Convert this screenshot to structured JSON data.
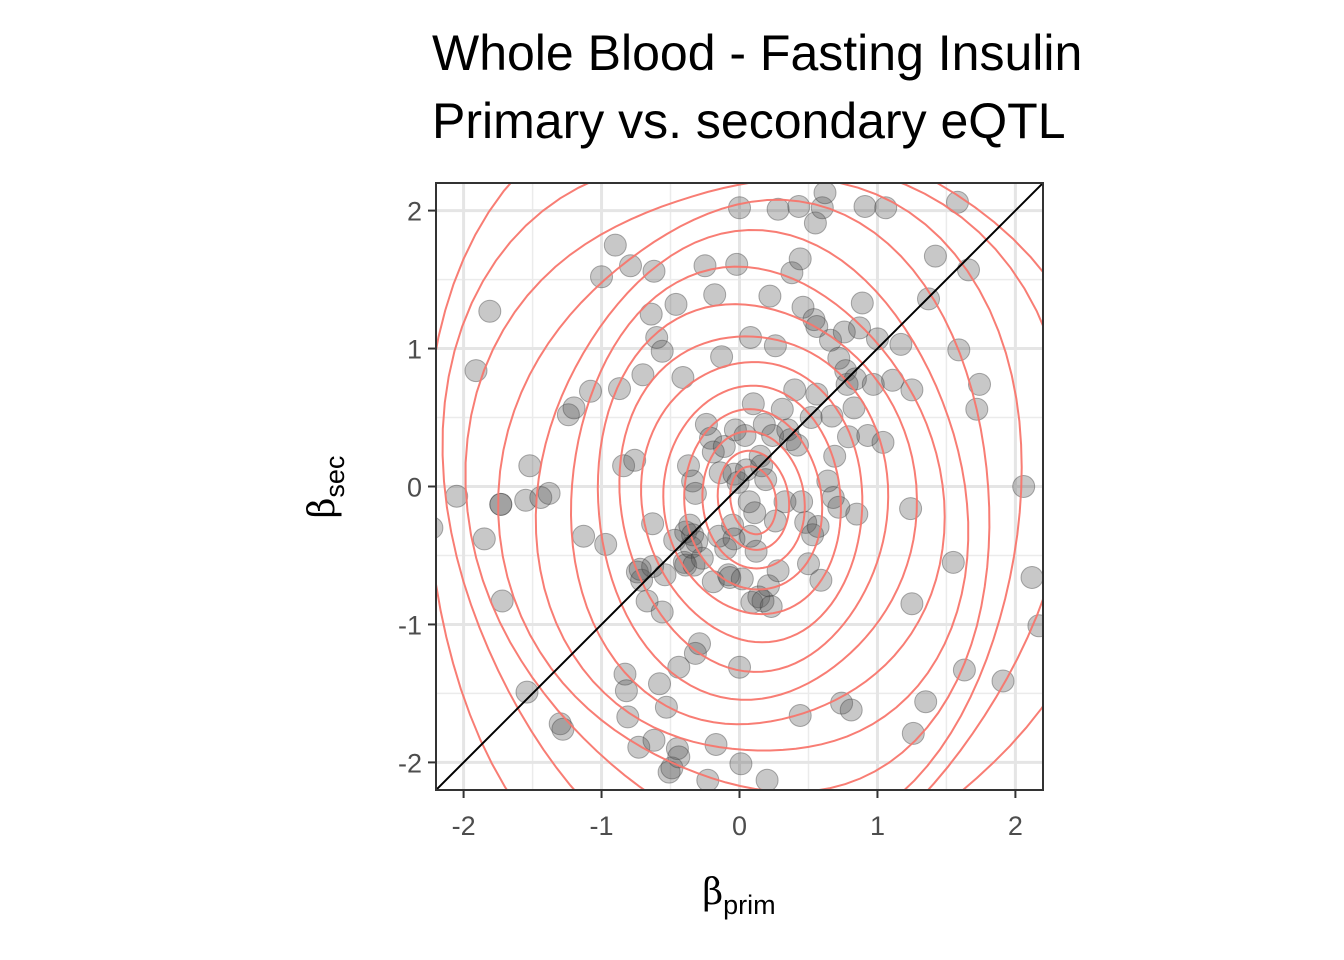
{
  "chart_data": {
    "type": "scatter",
    "title": [
      "Whole Blood - Fasting Insulin",
      "Primary vs. secondary eQTL"
    ],
    "xlabel": {
      "symbol": "β",
      "subscript": "prim"
    },
    "ylabel": {
      "symbol": "β",
      "subscript": "sec"
    },
    "xlim": [
      -2.2,
      2.2
    ],
    "ylim": [
      -2.2,
      2.2
    ],
    "x_ticks": [
      -2,
      -1,
      0,
      1,
      2
    ],
    "y_ticks": [
      -2,
      -1,
      0,
      1,
      2
    ],
    "x_tick_labels": [
      "-2",
      "-1",
      "0",
      "1",
      "2"
    ],
    "y_tick_labels": [
      "-2",
      "-1",
      "0",
      "1",
      "2"
    ],
    "grid": true,
    "reference_line": {
      "slope": 1,
      "intercept": 0,
      "color": "#000000"
    },
    "point_color": "#555555",
    "contour_color": "#f8766d",
    "contour_center": [
      0.1,
      -0.1
    ],
    "contour_count": 14,
    "points": [
      [
        -2.23,
        -0.3
      ],
      [
        -2.05,
        -0.07
      ],
      [
        -1.91,
        0.84
      ],
      [
        -1.85,
        -0.38
      ],
      [
        -1.81,
        1.27
      ],
      [
        -1.73,
        -0.13
      ],
      [
        -1.72,
        -0.83
      ],
      [
        -1.55,
        -0.1
      ],
      [
        -1.54,
        -1.49
      ],
      [
        -1.52,
        0.15
      ],
      [
        -1.44,
        -0.08
      ],
      [
        -1.38,
        -0.05
      ],
      [
        -1.3,
        -1.72
      ],
      [
        -1.28,
        -1.76
      ],
      [
        -1.24,
        0.52
      ],
      [
        -1.2,
        0.57
      ],
      [
        -1.13,
        -0.36
      ],
      [
        -1.08,
        0.69
      ],
      [
        -1.0,
        1.52
      ],
      [
        -0.97,
        -0.42
      ],
      [
        -0.9,
        1.75
      ],
      [
        -0.87,
        0.71
      ],
      [
        -0.84,
        0.15
      ],
      [
        -0.83,
        -1.36
      ],
      [
        -0.82,
        -1.48
      ],
      [
        -0.79,
        1.6
      ],
      [
        -0.76,
        0.19
      ],
      [
        -0.74,
        -0.62
      ],
      [
        -0.73,
        -1.89
      ],
      [
        -0.71,
        -0.68
      ],
      [
        -0.7,
        0.81
      ],
      [
        -0.67,
        -0.83
      ],
      [
        -0.64,
        1.25
      ],
      [
        -0.63,
        -0.27
      ],
      [
        -0.63,
        -0.58
      ],
      [
        -0.62,
        1.56
      ],
      [
        -0.62,
        -1.84
      ],
      [
        -0.6,
        1.08
      ],
      [
        -0.58,
        -1.43
      ],
      [
        -0.56,
        -0.91
      ],
      [
        -0.56,
        0.98
      ],
      [
        -0.54,
        -0.64
      ],
      [
        -0.53,
        -1.6
      ],
      [
        -0.51,
        -2.07
      ],
      [
        -0.49,
        -2.04
      ],
      [
        -0.46,
        1.32
      ],
      [
        -0.45,
        -1.9
      ],
      [
        -0.44,
        -1.96
      ],
      [
        -0.44,
        -1.31
      ],
      [
        -0.41,
        0.79
      ],
      [
        -0.4,
        -0.55
      ],
      [
        -0.39,
        -0.57
      ],
      [
        -0.39,
        -0.33
      ],
      [
        -0.37,
        0.15
      ],
      [
        -0.36,
        -0.28
      ],
      [
        -0.35,
        -0.44
      ],
      [
        -0.34,
        0.04
      ],
      [
        -0.34,
        -0.35
      ],
      [
        -0.33,
        -0.57
      ],
      [
        -0.32,
        -0.05
      ],
      [
        -0.31,
        -0.4
      ],
      [
        -0.29,
        -1.14
      ],
      [
        -0.27,
        -0.52
      ],
      [
        -0.25,
        1.6
      ],
      [
        -0.24,
        0.45
      ],
      [
        -0.23,
        -2.13
      ],
      [
        -0.21,
        0.35
      ],
      [
        -0.19,
        0.25
      ],
      [
        -0.19,
        -0.69
      ],
      [
        -0.18,
        1.39
      ],
      [
        -0.17,
        -1.87
      ],
      [
        -0.15,
        -0.36
      ],
      [
        -0.14,
        0.1
      ],
      [
        -0.13,
        0.94
      ],
      [
        -0.11,
        0.29
      ],
      [
        -0.1,
        -0.45
      ],
      [
        -0.08,
        -0.64
      ],
      [
        -0.07,
        -0.66
      ],
      [
        -0.05,
        -0.28
      ],
      [
        -0.04,
        0.09
      ],
      [
        -0.04,
        -0.38
      ],
      [
        -0.03,
        0.41
      ],
      [
        -0.02,
        1.61
      ],
      [
        -0.01,
        0.03
      ],
      [
        0.0,
        2.02
      ],
      [
        0.0,
        -1.31
      ],
      [
        0.01,
        -2.01
      ],
      [
        0.02,
        -0.67
      ],
      [
        0.04,
        0.37
      ],
      [
        0.05,
        0.12
      ],
      [
        0.07,
        -0.11
      ],
      [
        0.08,
        1.08
      ],
      [
        0.08,
        -0.36
      ],
      [
        0.09,
        -0.84
      ],
      [
        0.1,
        0.6
      ],
      [
        0.11,
        -0.19
      ],
      [
        0.12,
        -0.47
      ],
      [
        0.14,
        -0.8
      ],
      [
        0.15,
        0.22
      ],
      [
        0.16,
        0.15
      ],
      [
        0.17,
        -0.83
      ],
      [
        0.18,
        0.45
      ],
      [
        0.19,
        0.05
      ],
      [
        0.2,
        -2.13
      ],
      [
        0.21,
        -0.72
      ],
      [
        0.22,
        1.38
      ],
      [
        0.23,
        -0.87
      ],
      [
        0.24,
        0.37
      ],
      [
        0.26,
        1.02
      ],
      [
        0.28,
        -0.61
      ],
      [
        0.28,
        2.01
      ],
      [
        0.31,
        0.56
      ],
      [
        0.33,
        -0.11
      ],
      [
        0.35,
        0.41
      ],
      [
        0.37,
        0.34
      ],
      [
        0.38,
        1.55
      ],
      [
        0.4,
        0.7
      ],
      [
        0.42,
        0.3
      ],
      [
        0.43,
        2.03
      ],
      [
        0.44,
        1.65
      ],
      [
        0.44,
        -1.66
      ],
      [
        0.45,
        -0.11
      ],
      [
        0.46,
        1.3
      ],
      [
        0.48,
        -0.26
      ],
      [
        0.5,
        -0.56
      ],
      [
        0.52,
        0.5
      ],
      [
        0.53,
        -0.35
      ],
      [
        0.54,
        1.21
      ],
      [
        0.55,
        1.91
      ],
      [
        0.56,
        1.16
      ],
      [
        0.56,
        0.67
      ],
      [
        0.57,
        -0.29
      ],
      [
        0.59,
        -0.68
      ],
      [
        0.6,
        2.02
      ],
      [
        0.62,
        2.13
      ],
      [
        0.64,
        0.04
      ],
      [
        0.66,
        1.06
      ],
      [
        0.67,
        0.51
      ],
      [
        0.68,
        -0.08
      ],
      [
        0.69,
        0.22
      ],
      [
        0.72,
        0.93
      ],
      [
        0.72,
        -0.15
      ],
      [
        0.74,
        -1.57
      ],
      [
        0.76,
        1.12
      ],
      [
        0.77,
        0.84
      ],
      [
        0.78,
        0.74
      ],
      [
        0.79,
        0.36
      ],
      [
        0.81,
        -1.62
      ],
      [
        0.83,
        0.57
      ],
      [
        0.84,
        0.78
      ],
      [
        0.85,
        -0.2
      ],
      [
        0.87,
        1.15
      ],
      [
        0.89,
        1.33
      ],
      [
        0.91,
        2.03
      ],
      [
        0.93,
        0.37
      ],
      [
        0.97,
        0.74
      ],
      [
        1.0,
        1.07
      ],
      [
        1.04,
        0.32
      ],
      [
        1.06,
        2.02
      ],
      [
        1.11,
        0.77
      ],
      [
        1.17,
        1.03
      ],
      [
        1.24,
        -0.16
      ],
      [
        1.25,
        -0.85
      ],
      [
        1.25,
        0.7
      ],
      [
        1.26,
        -1.79
      ],
      [
        1.35,
        -1.56
      ],
      [
        1.37,
        1.36
      ],
      [
        1.42,
        1.67
      ],
      [
        1.55,
        -0.55
      ],
      [
        1.58,
        2.06
      ],
      [
        1.59,
        0.99
      ],
      [
        1.63,
        -1.33
      ],
      [
        1.66,
        1.57
      ],
      [
        1.72,
        0.56
      ],
      [
        1.74,
        0.74
      ],
      [
        1.91,
        -1.41
      ],
      [
        2.06,
        0.0
      ],
      [
        2.12,
        -0.66
      ],
      [
        2.17,
        -1.01
      ],
      [
        -1.73,
        -0.13
      ],
      [
        -0.81,
        -1.67
      ],
      [
        -0.72,
        -0.6
      ],
      [
        -0.47,
        -0.39
      ],
      [
        -0.32,
        -1.21
      ],
      [
        0.26,
        -0.25
      ]
    ]
  }
}
